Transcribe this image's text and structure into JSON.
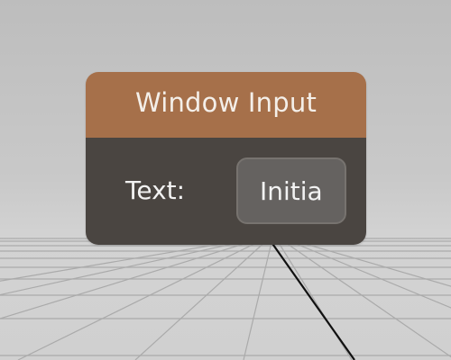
{
  "window": {
    "title": "Window Input",
    "field_label": "Text:",
    "input_value": "Initia"
  },
  "colors": {
    "title_bar": "#a6704a",
    "body": "#4a4541",
    "input_bg": "#656260",
    "text": "#f2f2f2"
  }
}
